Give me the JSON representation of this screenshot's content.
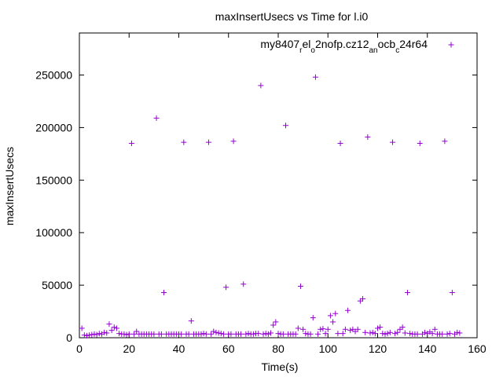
{
  "chart_data": {
    "type": "scatter",
    "title": "maxInsertUsecs vs Time for l.i0",
    "xlabel": "Time(s)",
    "ylabel": "maxInsertUsecs",
    "xlim": [
      0,
      160
    ],
    "ylim": [
      0,
      290000
    ],
    "xticks": [
      0,
      20,
      40,
      60,
      80,
      100,
      120,
      140,
      160
    ],
    "yticks": [
      0,
      50000,
      100000,
      150000,
      200000,
      250000
    ],
    "grid": false,
    "legend_position": "top-right",
    "marker_color": "#9400d3",
    "series": [
      {
        "name_parts": [
          {
            "t": "my8407",
            "s": "n"
          },
          {
            "t": "r",
            "s": "sub"
          },
          {
            "t": "el",
            "s": "n"
          },
          {
            "t": "o",
            "s": "sub"
          },
          {
            "t": "2nofp.cz12",
            "s": "n"
          },
          {
            "t": "a",
            "s": "sub"
          },
          {
            "t": "n",
            "s": "sub"
          },
          {
            "t": "ocb",
            "s": "n"
          },
          {
            "t": "c",
            "s": "sub"
          },
          {
            "t": "24r64",
            "s": "n"
          }
        ],
        "points": [
          [
            1,
            9000
          ],
          [
            2,
            2500
          ],
          [
            3,
            2000
          ],
          [
            4,
            2500
          ],
          [
            5,
            3000
          ],
          [
            6,
            3500
          ],
          [
            7,
            3000
          ],
          [
            8,
            4000
          ],
          [
            9,
            3500
          ],
          [
            10,
            5000
          ],
          [
            11,
            4500
          ],
          [
            12,
            13000
          ],
          [
            13,
            7000
          ],
          [
            14,
            10000
          ],
          [
            15,
            9000
          ],
          [
            16,
            4000
          ],
          [
            17,
            3500
          ],
          [
            18,
            3500
          ],
          [
            19,
            3000
          ],
          [
            20,
            3500
          ],
          [
            21,
            185000
          ],
          [
            22,
            3500
          ],
          [
            23,
            6000
          ],
          [
            24,
            3500
          ],
          [
            25,
            3500
          ],
          [
            26,
            3500
          ],
          [
            27,
            3500
          ],
          [
            28,
            3500
          ],
          [
            29,
            3500
          ],
          [
            30,
            3500
          ],
          [
            31,
            209000
          ],
          [
            32,
            3500
          ],
          [
            33,
            3500
          ],
          [
            34,
            43000
          ],
          [
            35,
            3500
          ],
          [
            36,
            3500
          ],
          [
            37,
            3500
          ],
          [
            38,
            3500
          ],
          [
            39,
            3500
          ],
          [
            40,
            3500
          ],
          [
            41,
            3500
          ],
          [
            42,
            186000
          ],
          [
            43,
            3500
          ],
          [
            44,
            3500
          ],
          [
            45,
            16000
          ],
          [
            46,
            3500
          ],
          [
            47,
            3500
          ],
          [
            48,
            3500
          ],
          [
            49,
            3500
          ],
          [
            50,
            4000
          ],
          [
            51,
            3500
          ],
          [
            52,
            186000
          ],
          [
            53,
            3500
          ],
          [
            54,
            6000
          ],
          [
            55,
            5000
          ],
          [
            56,
            4500
          ],
          [
            57,
            4000
          ],
          [
            58,
            3500
          ],
          [
            59,
            48000
          ],
          [
            60,
            3500
          ],
          [
            61,
            3500
          ],
          [
            62,
            187000
          ],
          [
            63,
            3500
          ],
          [
            64,
            3500
          ],
          [
            65,
            3500
          ],
          [
            66,
            51000
          ],
          [
            67,
            3500
          ],
          [
            68,
            4000
          ],
          [
            69,
            3500
          ],
          [
            70,
            3500
          ],
          [
            71,
            4000
          ],
          [
            72,
            4000
          ],
          [
            73,
            240000
          ],
          [
            74,
            3500
          ],
          [
            75,
            4000
          ],
          [
            76,
            3500
          ],
          [
            77,
            4500
          ],
          [
            78,
            12000
          ],
          [
            79,
            15000
          ],
          [
            80,
            4000
          ],
          [
            81,
            3500
          ],
          [
            82,
            3500
          ],
          [
            83,
            202000
          ],
          [
            84,
            3500
          ],
          [
            85,
            3500
          ],
          [
            86,
            3500
          ],
          [
            87,
            3500
          ],
          [
            88,
            9000
          ],
          [
            89,
            49000
          ],
          [
            90,
            8000
          ],
          [
            91,
            4000
          ],
          [
            92,
            3500
          ],
          [
            93,
            3500
          ],
          [
            94,
            19000
          ],
          [
            95,
            248000
          ],
          [
            96,
            3500
          ],
          [
            97,
            8000
          ],
          [
            98,
            8500
          ],
          [
            99,
            4000
          ],
          [
            100,
            8000
          ],
          [
            101,
            21000
          ],
          [
            102,
            15000
          ],
          [
            103,
            23000
          ],
          [
            104,
            4000
          ],
          [
            105,
            185000
          ],
          [
            106,
            4000
          ],
          [
            107,
            8000
          ],
          [
            108,
            26000
          ],
          [
            109,
            7000
          ],
          [
            110,
            8000
          ],
          [
            111,
            6000
          ],
          [
            112,
            8000
          ],
          [
            113,
            35000
          ],
          [
            114,
            37000
          ],
          [
            115,
            5000
          ],
          [
            116,
            191000
          ],
          [
            117,
            4500
          ],
          [
            118,
            5000
          ],
          [
            119,
            4000
          ],
          [
            120,
            9000
          ],
          [
            121,
            10000
          ],
          [
            122,
            4000
          ],
          [
            123,
            3500
          ],
          [
            124,
            4000
          ],
          [
            125,
            5000
          ],
          [
            126,
            186000
          ],
          [
            127,
            4000
          ],
          [
            128,
            5000
          ],
          [
            129,
            8000
          ],
          [
            130,
            10000
          ],
          [
            131,
            4500
          ],
          [
            132,
            43000
          ],
          [
            133,
            4000
          ],
          [
            134,
            3500
          ],
          [
            135,
            3500
          ],
          [
            136,
            3500
          ],
          [
            137,
            185000
          ],
          [
            138,
            3500
          ],
          [
            139,
            5000
          ],
          [
            140,
            4000
          ],
          [
            141,
            5500
          ],
          [
            142,
            4000
          ],
          [
            143,
            8000
          ],
          [
            144,
            3500
          ],
          [
            145,
            3500
          ],
          [
            146,
            3500
          ],
          [
            147,
            187000
          ],
          [
            148,
            3500
          ],
          [
            149,
            4000
          ],
          [
            150,
            43000
          ],
          [
            151,
            3500
          ],
          [
            152,
            5000
          ],
          [
            153,
            4500
          ]
        ]
      }
    ]
  }
}
